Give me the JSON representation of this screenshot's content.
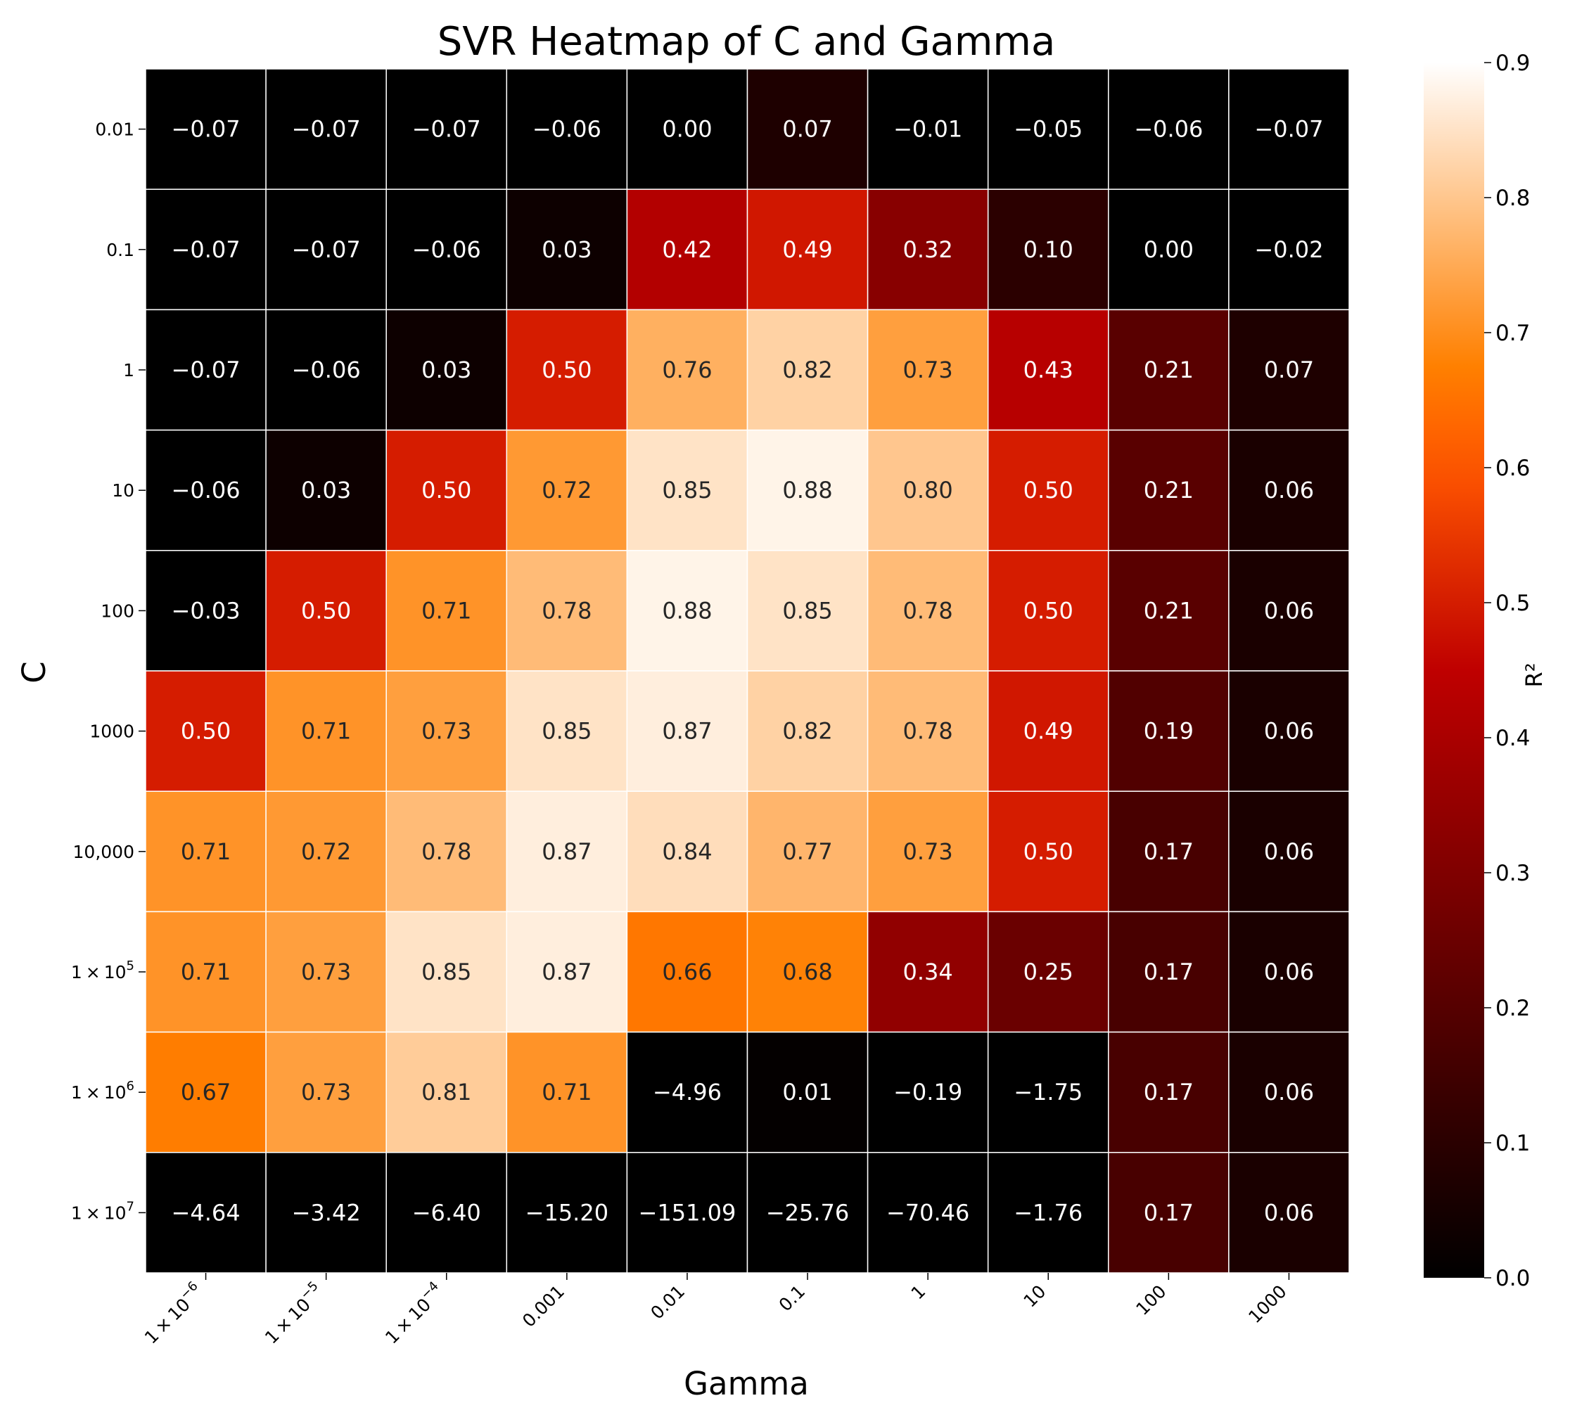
{
  "chart_data": {
    "type": "heatmap",
    "title": "SVR Heatmap of C and Gamma",
    "xlabel": "Gamma",
    "ylabel": "C",
    "x_categories": [
      {
        "base": "1 × 10",
        "exp": "−6"
      },
      {
        "base": "1 × 10",
        "exp": "−5"
      },
      {
        "base": "1 × 10",
        "exp": "−4"
      },
      {
        "base": "0.001",
        "exp": ""
      },
      {
        "base": "0.01",
        "exp": ""
      },
      {
        "base": "0.1",
        "exp": ""
      },
      {
        "base": "1",
        "exp": ""
      },
      {
        "base": "10",
        "exp": ""
      },
      {
        "base": "100",
        "exp": ""
      },
      {
        "base": "1000",
        "exp": ""
      }
    ],
    "y_categories": [
      {
        "base": "0.01",
        "exp": ""
      },
      {
        "base": "0.1",
        "exp": ""
      },
      {
        "base": "1",
        "exp": ""
      },
      {
        "base": "10",
        "exp": ""
      },
      {
        "base": "100",
        "exp": ""
      },
      {
        "base": "1000",
        "exp": ""
      },
      {
        "base": "10,000",
        "exp": ""
      },
      {
        "base": "1 × 10",
        "exp": "5"
      },
      {
        "base": "1 × 10",
        "exp": "6"
      },
      {
        "base": "1 × 10",
        "exp": "7"
      }
    ],
    "values": [
      [
        -0.07,
        -0.07,
        -0.07,
        -0.06,
        0.0,
        0.07,
        -0.01,
        -0.05,
        -0.06,
        -0.07
      ],
      [
        -0.07,
        -0.07,
        -0.06,
        0.03,
        0.42,
        0.49,
        0.32,
        0.1,
        0.0,
        -0.02
      ],
      [
        -0.07,
        -0.06,
        0.03,
        0.5,
        0.76,
        0.82,
        0.73,
        0.43,
        0.21,
        0.07
      ],
      [
        -0.06,
        0.03,
        0.5,
        0.72,
        0.85,
        0.88,
        0.8,
        0.5,
        0.21,
        0.06
      ],
      [
        -0.03,
        0.5,
        0.71,
        0.78,
        0.88,
        0.85,
        0.78,
        0.5,
        0.21,
        0.06
      ],
      [
        0.5,
        0.71,
        0.73,
        0.85,
        0.87,
        0.82,
        0.78,
        0.49,
        0.19,
        0.06
      ],
      [
        0.71,
        0.72,
        0.78,
        0.87,
        0.84,
        0.77,
        0.73,
        0.5,
        0.17,
        0.06
      ],
      [
        0.71,
        0.73,
        0.85,
        0.87,
        0.66,
        0.68,
        0.34,
        0.25,
        0.17,
        0.06
      ],
      [
        0.67,
        0.73,
        0.81,
        0.71,
        -4.96,
        0.01,
        -0.19,
        -1.75,
        0.17,
        0.06
      ],
      [
        -4.64,
        -3.42,
        -6.4,
        -15.2,
        -151.09,
        -25.76,
        -70.46,
        -1.76,
        0.17,
        0.06
      ]
    ],
    "colorbar": {
      "label": "R²",
      "range": [
        0.0,
        0.9
      ],
      "ticks": [
        0.0,
        0.1,
        0.2,
        0.3,
        0.4,
        0.5,
        0.6,
        0.7,
        0.8,
        0.9
      ],
      "tick_labels": [
        "0.0",
        "0.1",
        "0.2",
        "0.3",
        "0.4",
        "0.5",
        "0.6",
        "0.7",
        "0.8",
        "0.9"
      ]
    },
    "colormap": "gist_heat",
    "cell_border_color": "#ffffff"
  }
}
